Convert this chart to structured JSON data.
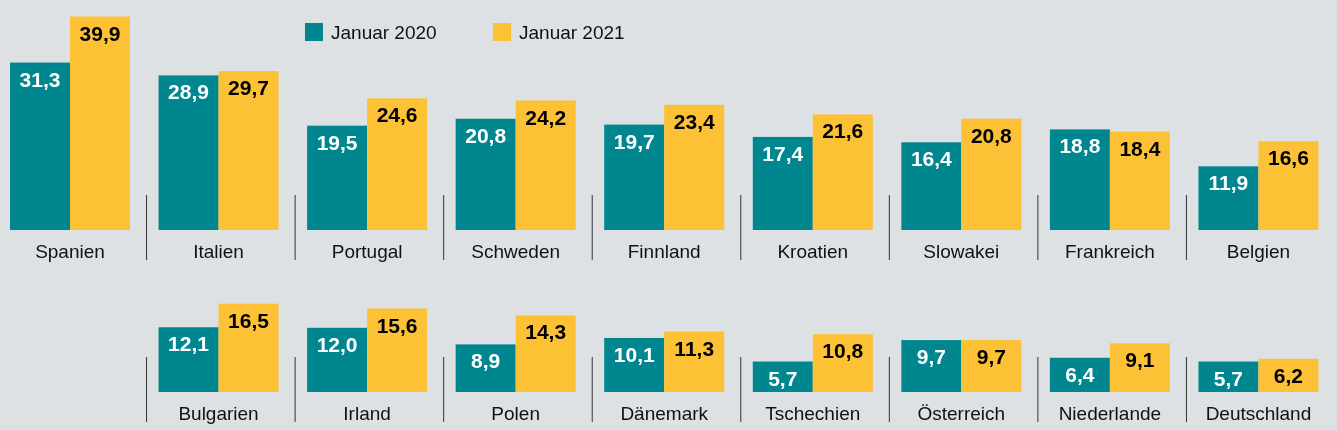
{
  "chart_data": [
    {
      "type": "bar",
      "categories": [
        "Spanien",
        "Italien",
        "Portugal",
        "Schweden",
        "Finnland",
        "Kroatien",
        "Slowakei",
        "Frankreich",
        "Belgien"
      ],
      "series": [
        {
          "name": "Januar 2020",
          "color": "#00868f",
          "values": [
            31.3,
            28.9,
            19.5,
            20.8,
            19.7,
            17.4,
            16.4,
            18.8,
            11.9
          ],
          "value_labels": [
            "31,3",
            "28,9",
            "19,5",
            "20,8",
            "19,7",
            "17,4",
            "16,4",
            "18,8",
            "11,9"
          ]
        },
        {
          "name": "Januar 2021",
          "color": "#fdc135",
          "values": [
            39.9,
            29.7,
            24.6,
            24.2,
            23.4,
            21.6,
            20.8,
            18.4,
            16.6
          ],
          "value_labels": [
            "39,9",
            "29,7",
            "24,6",
            "24,2",
            "23,4",
            "21,6",
            "20,8",
            "18,4",
            "16,6"
          ]
        }
      ],
      "legend": "top"
    },
    {
      "type": "bar",
      "categories": [
        null,
        "Bulgarien",
        "Irland",
        "Polen",
        "Dänemark",
        "Tschechien",
        "Österreich",
        "Niederlande",
        "Deutschland"
      ],
      "series": [
        {
          "color": "#00868f",
          "values": [
            null,
            12.1,
            12.0,
            8.9,
            10.1,
            5.7,
            9.7,
            6.4,
            5.7
          ],
          "value_labels": [
            null,
            "12,1",
            "12,0",
            "8,9",
            "10,1",
            "5,7",
            "9,7",
            "6,4",
            "5,7"
          ]
        },
        {
          "color": "#fdc135",
          "values": [
            null,
            16.5,
            15.6,
            14.3,
            11.3,
            10.8,
            9.7,
            9.1,
            6.2
          ],
          "value_labels": [
            null,
            "16,5",
            "15,6",
            "14,3",
            "11,3",
            "10,8",
            "9,7",
            "9,1",
            "6,2"
          ]
        }
      ],
      "legend": false
    }
  ]
}
